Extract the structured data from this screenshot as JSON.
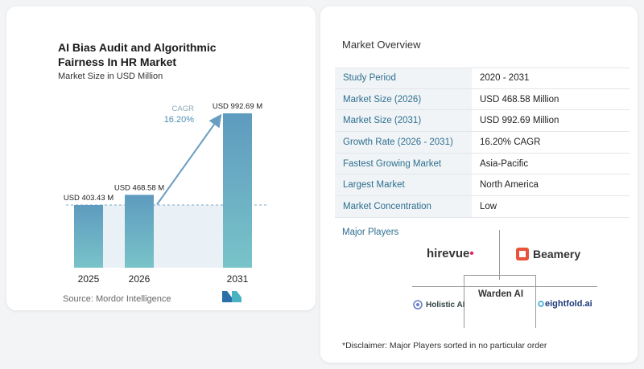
{
  "chart_data": {
    "type": "bar",
    "title": "AI Bias Audit and Algorithmic Fairness In HR Market",
    "subtitle": "Market Size in USD Million",
    "categories": [
      "2025",
      "2026",
      "2031"
    ],
    "values": [
      403.43,
      468.58,
      992.69
    ],
    "value_labels": [
      "USD 403.43 M",
      "USD 468.58 M",
      "USD 992.69 M"
    ],
    "cagr_label": "CAGR",
    "cagr_value": "16.20%",
    "colors": {
      "bar_top": "#5e9bbf",
      "bar_bottom": "#79c3c9",
      "reference": "#d9e6ef",
      "arrow": "#6a9ec0"
    }
  },
  "source": "Source: Mordor Intelligence",
  "market_overview": {
    "title": "Market Overview",
    "rows": [
      {
        "key": "Study Period",
        "value": "2020 - 2031"
      },
      {
        "key": "Market Size (2026)",
        "value": "USD 468.58 Million"
      },
      {
        "key": "Market Size (2031)",
        "value": "USD 992.69 Million"
      },
      {
        "key": "Growth Rate (2026 - 2031)",
        "value": "16.20% CAGR"
      },
      {
        "key": "Fastest Growing Market",
        "value": "Asia-Pacific"
      },
      {
        "key": "Largest Market",
        "value": "North America"
      },
      {
        "key": "Market Concentration",
        "value": "Low"
      }
    ]
  },
  "major_players": {
    "title": "Major Players",
    "players": [
      "hirevue",
      "Beamery",
      "Warden AI",
      "Holistic AI",
      "eightfold.ai"
    ]
  },
  "disclaimer": "*Disclaimer: Major Players sorted in no particular order"
}
